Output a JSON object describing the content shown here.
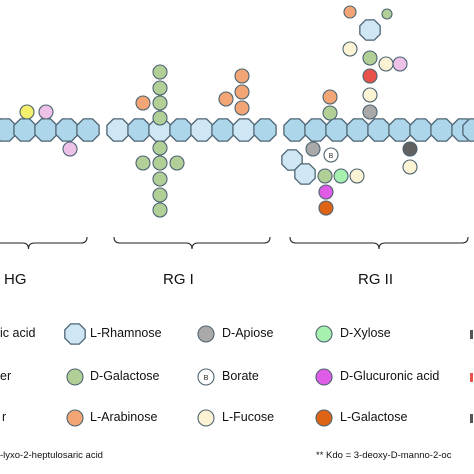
{
  "colors": {
    "rhamnose": "#cfe6f4",
    "hexagon_stroke": "#4d6472",
    "galacturonic": "#aed6ea",
    "galactose": "#b3cf98",
    "arabinose": "#f3a575",
    "apiose": "#a9a9a9",
    "apiose_dark": "#616161",
    "fucose": "#fbf3d3",
    "xylose": "#a8f0b0",
    "glucuronic": "#de5ce6",
    "l_galactose": "#df6314",
    "kdo": "#e8524a",
    "yellow": "#f4f06c",
    "pink": "#eec1e8",
    "borate": "#ffffff"
  },
  "sections": {
    "hg": "HG",
    "rg1": "RG I",
    "rg2": "RG II"
  },
  "legend": {
    "acid_partial": "ic acid",
    "row2_partial": "er",
    "row3_partial": "r",
    "rhamnose": "L-Rhamnose",
    "galactose": "D-Galactose",
    "arabinose": "L-Arabinose",
    "apiose": "D-Apiose",
    "borate": "Borate",
    "borate_symbol": "B",
    "fucose": "L-Fucose",
    "xylose": "D-Xylose",
    "glucuronic": "D-Glucuronic acid",
    "l_galactose": "L-Galactose"
  },
  "footnotes": {
    "left": "-lyxo-2-heptulosaric  acid",
    "right": "** Kdo = 3-deoxy-D-manno-2-oc"
  }
}
